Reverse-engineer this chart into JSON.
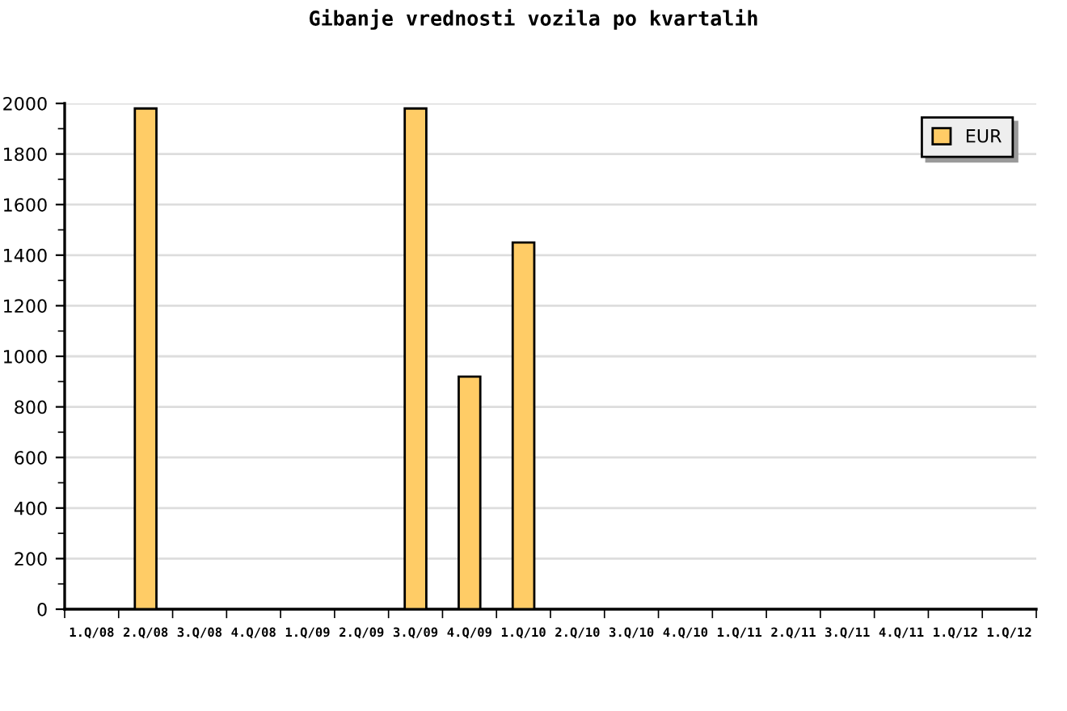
{
  "chart_data": {
    "type": "bar",
    "title": "Gibanje vrednosti vozila po kvartalih",
    "categories": [
      "1.Q/08",
      "2.Q/08",
      "3.Q/08",
      "4.Q/08",
      "1.Q/09",
      "2.Q/09",
      "3.Q/09",
      "4.Q/09",
      "1.Q/10",
      "2.Q/10",
      "3.Q/10",
      "4.Q/10",
      "1.Q/11",
      "2.Q/11",
      "3.Q/11",
      "4.Q/11",
      "1.Q/12",
      "1.Q/12"
    ],
    "series": [
      {
        "name": "EUR",
        "color": "#ffcc66",
        "values": [
          null,
          1980,
          null,
          null,
          null,
          null,
          1980,
          920,
          1450,
          null,
          null,
          null,
          null,
          null,
          null,
          null,
          null,
          null
        ]
      }
    ],
    "ylim": [
      0,
      2000
    ],
    "yticks": [
      0,
      {
        "value": 100,
        "label": null
      },
      200,
      {
        "value": 300,
        "label": null
      },
      400,
      {
        "value": 500,
        "label": null
      },
      600,
      {
        "value": 700,
        "label": null
      },
      800,
      {
        "value": 900,
        "label": null
      },
      1000,
      {
        "value": 1100,
        "label": null
      },
      1200,
      {
        "value": 1300,
        "label": null
      },
      1400,
      {
        "value": 1500,
        "label": null
      },
      1600,
      {
        "value": 1700,
        "label": null
      },
      1800,
      {
        "value": 1900,
        "label": null
      },
      2000
    ],
    "grid": "y",
    "legend": "top right"
  }
}
